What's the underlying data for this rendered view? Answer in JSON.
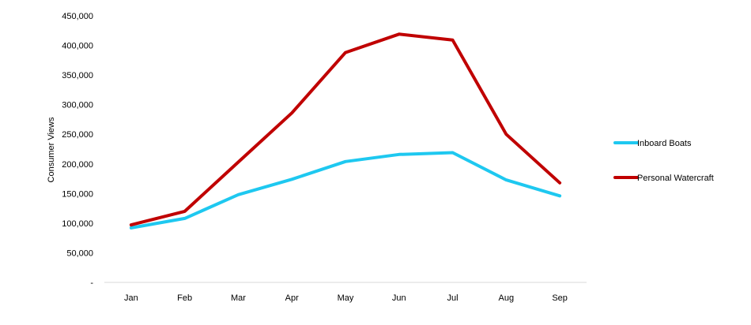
{
  "chart_data": {
    "type": "line",
    "title": "",
    "xlabel": "",
    "ylabel": "Consumer Views",
    "categories": [
      "Jan",
      "Feb",
      "Mar",
      "Apr",
      "May",
      "Jun",
      "Jul",
      "Aug",
      "Sep"
    ],
    "ylim": [
      0,
      450000
    ],
    "y_ticks": [
      0,
      50000,
      100000,
      150000,
      200000,
      250000,
      300000,
      350000,
      400000,
      450000
    ],
    "y_tick_labels": [
      "-",
      "50,000",
      "100,000",
      "150,000",
      "200,000",
      "250,000",
      "300,000",
      "350,000",
      "400,000",
      "450,000"
    ],
    "grid": false,
    "legend_position": "right",
    "series": [
      {
        "name": "Inboard Boats",
        "color": "#1ec8f0",
        "values": [
          92000,
          108000,
          148000,
          174000,
          204000,
          216000,
          219000,
          173000,
          146000
        ]
      },
      {
        "name": "Personal Watercraft",
        "color": "#c00000",
        "values": [
          97000,
          120000,
          203000,
          286000,
          388000,
          419000,
          409000,
          250000,
          168000
        ]
      }
    ]
  }
}
